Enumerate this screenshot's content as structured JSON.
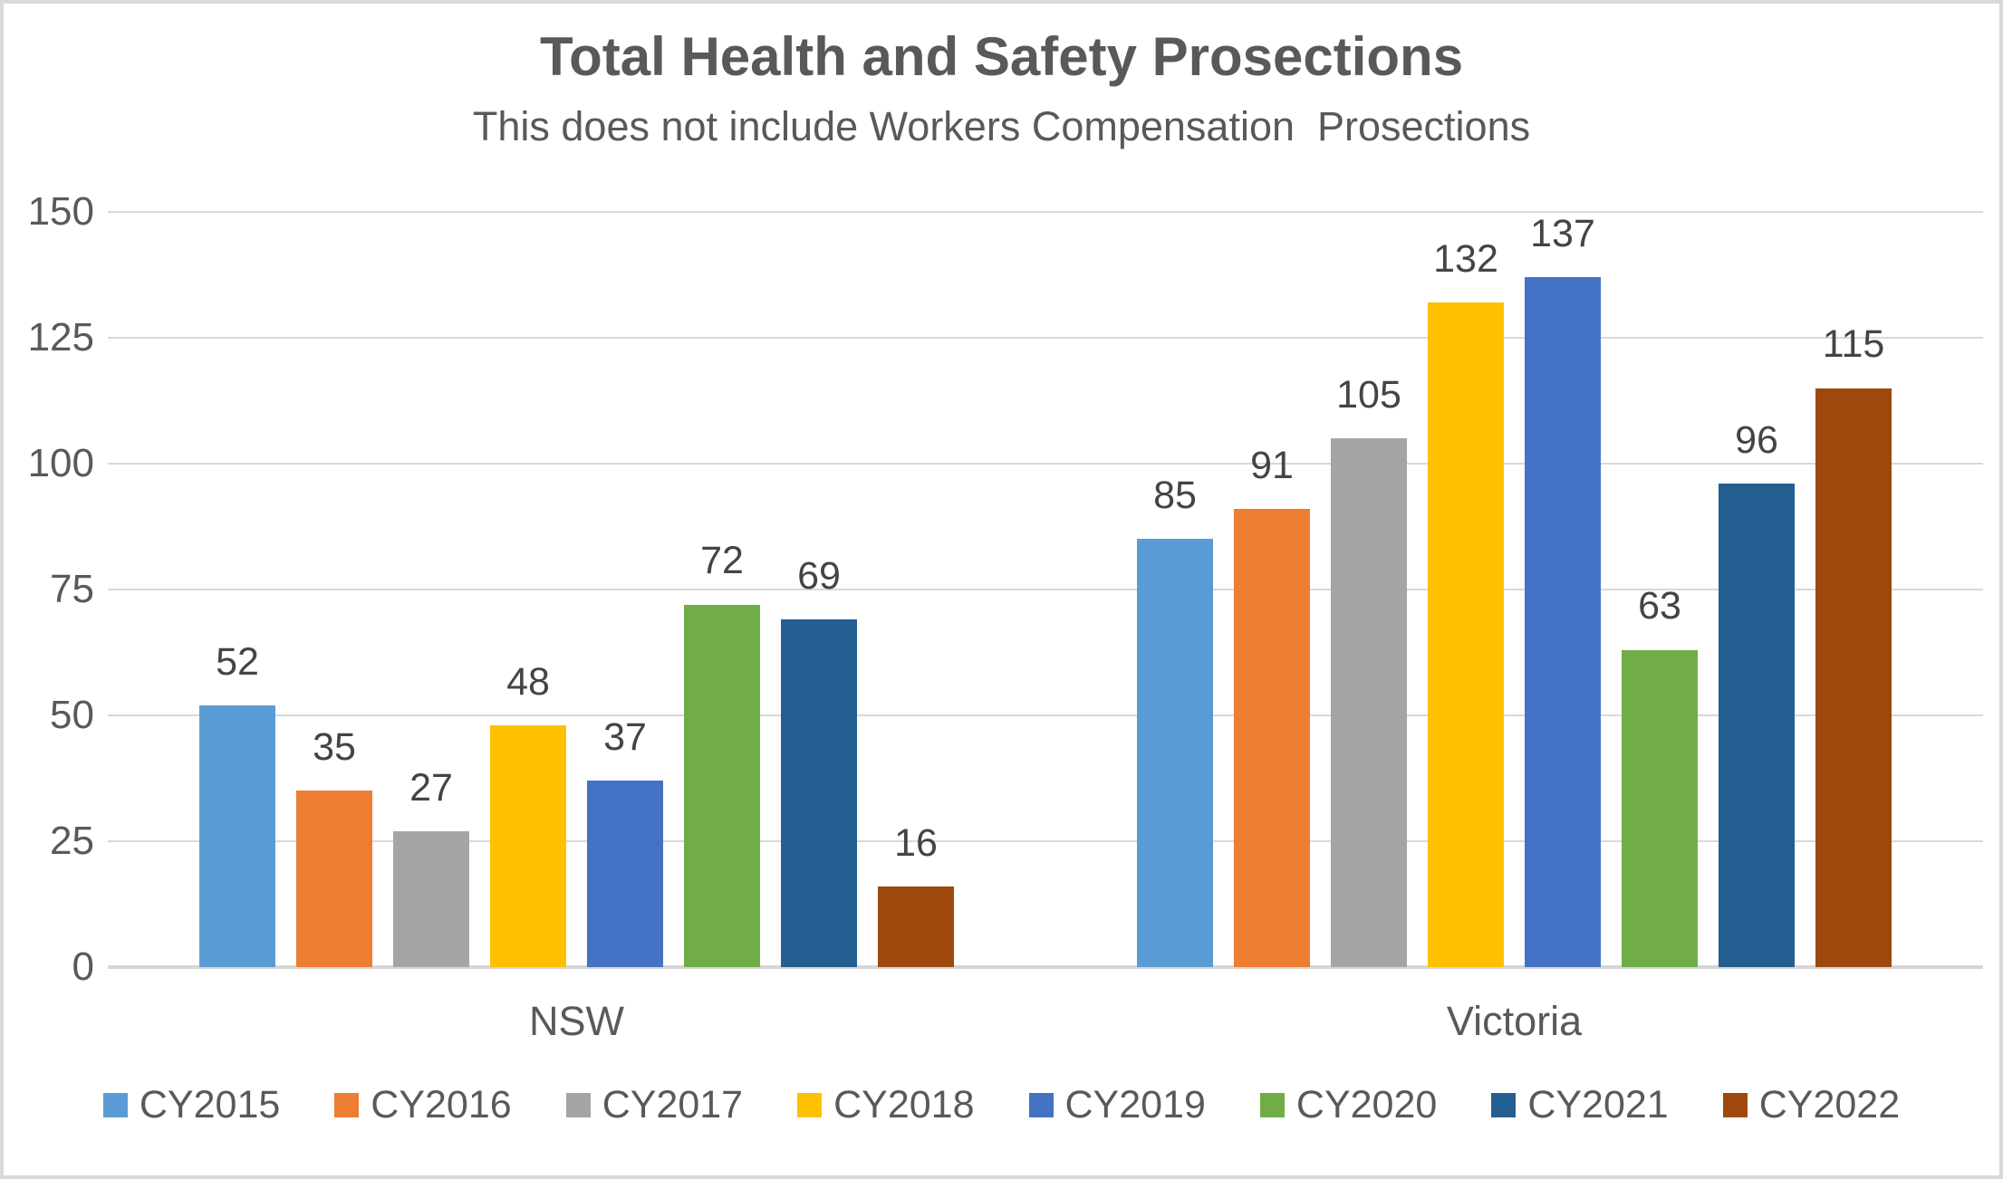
{
  "chart_data": {
    "type": "bar",
    "title": "Total Health and Safety Prosections",
    "subtitle": "This does not include Workers Compensation  Prosections",
    "categories": [
      "NSW",
      "Victoria"
    ],
    "series": [
      {
        "name": "CY2015",
        "color": "#5B9BD5",
        "values": [
          52,
          85
        ]
      },
      {
        "name": "CY2016",
        "color": "#ED7D31",
        "values": [
          35,
          91
        ]
      },
      {
        "name": "CY2017",
        "color": "#A5A5A5",
        "values": [
          27,
          105
        ]
      },
      {
        "name": "CY2018",
        "color": "#FFC000",
        "values": [
          48,
          132
        ]
      },
      {
        "name": "CY2019",
        "color": "#4472C4",
        "values": [
          37,
          137
        ]
      },
      {
        "name": "CY2020",
        "color": "#70AD47",
        "values": [
          72,
          63
        ]
      },
      {
        "name": "CY2021",
        "color": "#255E91",
        "values": [
          69,
          96
        ]
      },
      {
        "name": "CY2022",
        "color": "#9E480E",
        "values": [
          16,
          115
        ]
      }
    ],
    "yticks": [
      0,
      25,
      50,
      75,
      100,
      125,
      150
    ],
    "ylim": [
      0,
      150
    ],
    "grid": true,
    "legend_position": "bottom",
    "colors": {
      "title_text": "#595959",
      "tick_text": "#595959",
      "data_label_text": "#444444",
      "gridline": "#D9D9D9",
      "border": "#D9D9D9"
    }
  }
}
